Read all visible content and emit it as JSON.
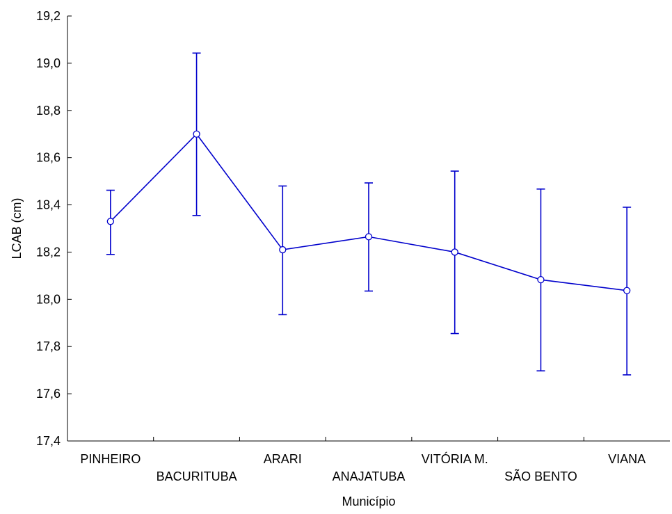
{
  "chart_data": {
    "type": "line",
    "title": "",
    "xlabel": "Município",
    "ylabel": "LCAB (cm)",
    "categories": [
      "PINHEIRO",
      "BACURITUBA",
      "ARARI",
      "ANAJATUBA",
      "VITÓRIA M.",
      "SÃO BENTO",
      "VIANA"
    ],
    "series": [
      {
        "values": [
          18.33,
          18.7,
          18.21,
          18.265,
          18.2,
          18.083,
          18.037
        ],
        "error_low": [
          18.19,
          18.355,
          17.935,
          18.035,
          17.855,
          17.697,
          17.68
        ],
        "error_high": [
          18.462,
          19.043,
          18.48,
          18.493,
          18.543,
          18.467,
          18.39
        ]
      }
    ],
    "ylim": [
      17.4,
      19.2
    ],
    "yticks": [
      "17,4",
      "17,6",
      "17,8",
      "18,0",
      "18,2",
      "18,4",
      "18,6",
      "18,8",
      "19,0",
      "19,2"
    ],
    "grid": false,
    "colors": {
      "series": "#0000cc",
      "axis": "#000000",
      "marker_fill": "#ffffff"
    }
  }
}
